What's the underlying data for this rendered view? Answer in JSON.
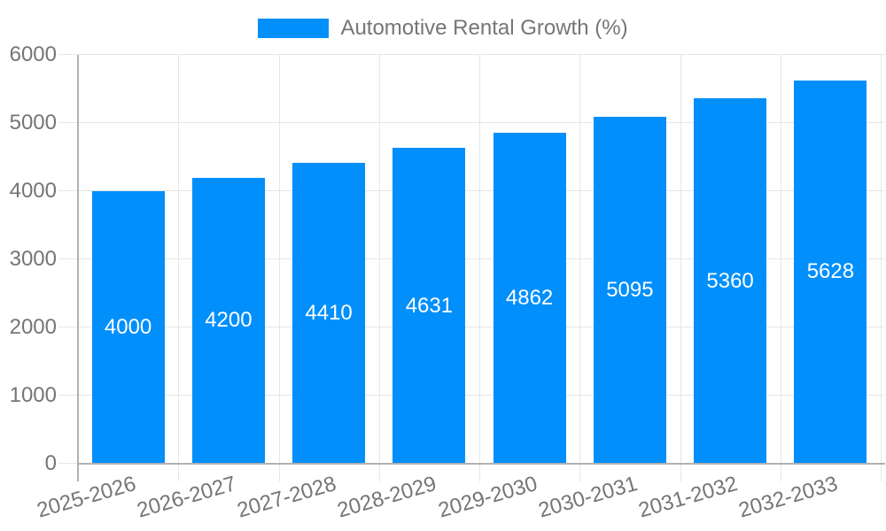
{
  "legend": {
    "position": "top",
    "label": "Automotive Rental Growth (%)"
  },
  "chart_data": {
    "type": "bar",
    "title": "Automotive Rental Growth (%)",
    "categories": [
      "2025-2026",
      "2026-2027",
      "2027-2028",
      "2028-2029",
      "2029-2030",
      "2030-2031",
      "2031-2032",
      "2032-2033"
    ],
    "series": [
      {
        "name": "Automotive Rental Growth (%)",
        "color": "#008FFB",
        "values": [
          4000,
          4200,
          4410,
          4631,
          4862,
          5095,
          5360,
          5628
        ]
      }
    ],
    "xlabel": "",
    "ylabel": "",
    "ylim": [
      0,
      6000
    ],
    "y_ticks": [
      0,
      1000,
      2000,
      3000,
      4000,
      5000,
      6000
    ],
    "grid": true,
    "legend_position": "top",
    "bar_labels_inside": true,
    "bar_label_color": "#ffffff",
    "axis_text_color": "#757575",
    "gridline_color": "#e6e6e6",
    "axis_line_color": "#b1b1b1",
    "x_label_rotation": -16
  }
}
